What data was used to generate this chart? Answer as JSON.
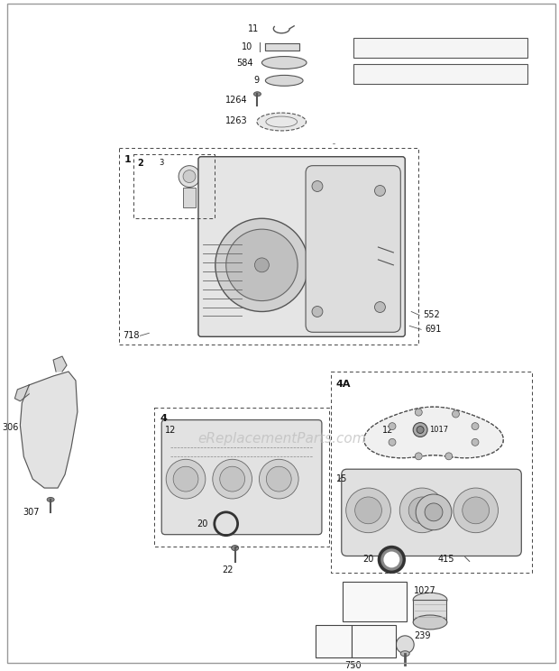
{
  "bg_color": "#ffffff",
  "watermark": "eReplacementParts.com",
  "fig_w": 6.2,
  "fig_h": 7.44,
  "dpi": 100
}
